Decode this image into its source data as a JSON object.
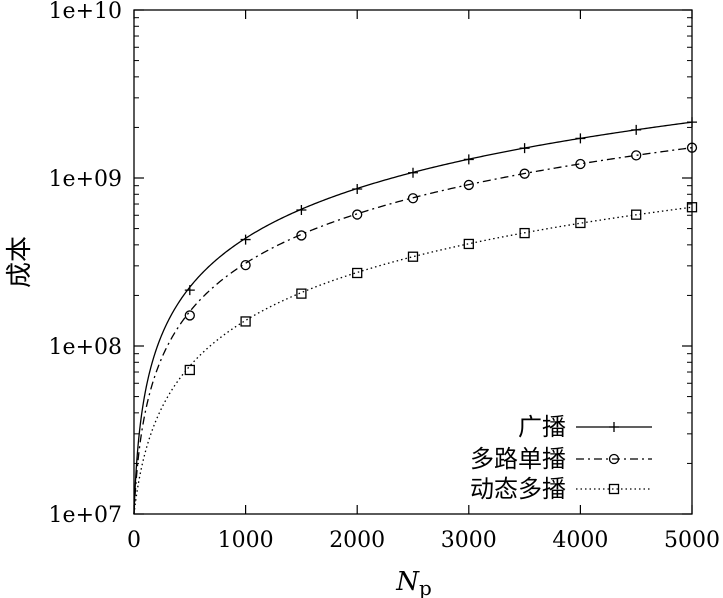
{
  "chart_data": {
    "type": "line",
    "xlabel": "N",
    "xlabel_sub": "p",
    "ylabel": "成本",
    "xlim": [
      0,
      5000
    ],
    "ylim": [
      10000000,
      10000000000
    ],
    "yscale": "log",
    "x_ticks": [
      0,
      1000,
      2000,
      3000,
      4000,
      5000
    ],
    "x_tick_labels": [
      "0",
      "1000",
      "2000",
      "3000",
      "4000",
      "5000"
    ],
    "y_ticks": [
      10000000,
      100000000,
      1000000000,
      10000000000
    ],
    "y_tick_labels": [
      "1e+07",
      "1e+08",
      "1e+09",
      "1e+10"
    ],
    "grid": false,
    "legend_position": "bottom-right",
    "series": [
      {
        "name": "广播",
        "line_style": "solid",
        "marker": "plus",
        "x": [
          0,
          500,
          1000,
          1500,
          2000,
          2500,
          3000,
          3500,
          4000,
          4500,
          5000
        ],
        "y": [
          10000000,
          215000000,
          430000000,
          645000000,
          860000000,
          1075000000,
          1290000000,
          1505000000,
          1720000000,
          1935000000,
          2150000000
        ]
      },
      {
        "name": "多路单播",
        "line_style": "dashdot",
        "marker": "circle",
        "x": [
          0,
          500,
          1000,
          1500,
          2000,
          2500,
          3000,
          3500,
          4000,
          4500,
          5000
        ],
        "y": [
          10000000,
          152000000,
          303000000,
          455000000,
          606000000,
          758000000,
          909000000,
          1061000000,
          1212000000,
          1364000000,
          1515000000
        ]
      },
      {
        "name": "动态多播",
        "line_style": "dotted",
        "marker": "square",
        "x": [
          0,
          500,
          1000,
          1500,
          2000,
          2500,
          3000,
          3500,
          4000,
          4500,
          5000
        ],
        "y": [
          10000000,
          72000000,
          140000000,
          205000000,
          272000000,
          340000000,
          405000000,
          470000000,
          540000000,
          605000000,
          670000000
        ]
      }
    ]
  }
}
